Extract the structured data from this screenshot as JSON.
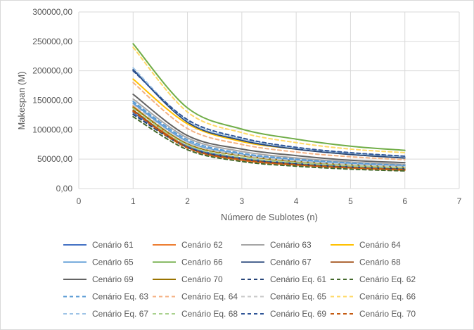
{
  "chart_data": {
    "type": "line",
    "title": "",
    "xlabel": "Número de Sublotes (n)",
    "ylabel": "Makespan (M)",
    "xlim": [
      0,
      7
    ],
    "ylim": [
      0,
      300000
    ],
    "x_ticks": [
      0,
      1,
      2,
      3,
      4,
      5,
      6,
      7
    ],
    "x_tick_labels": [
      "0",
      "1",
      "2",
      "3",
      "4",
      "5",
      "6",
      "7"
    ],
    "y_ticks": [
      0,
      50000,
      100000,
      150000,
      200000,
      250000,
      300000
    ],
    "y_tick_labels": [
      "0,00",
      "50000,00",
      "100000,00",
      "150000,00",
      "200000,00",
      "250000,00",
      "300000,00"
    ],
    "grid": true,
    "legend_position": "bottom",
    "x": [
      1,
      2,
      3,
      4,
      5,
      6
    ],
    "series": [
      {
        "name": "Cenário 61",
        "color": "#4472c4",
        "dash": "solid",
        "values": [
          129000,
          72000,
          52000,
          43000,
          37500,
          34500
        ]
      },
      {
        "name": "Cenário 62",
        "color": "#ed7d31",
        "dash": "solid",
        "values": [
          140000,
          70000,
          48000,
          40000,
          35000,
          31000
        ]
      },
      {
        "name": "Cenário 63",
        "color": "#a5a5a5",
        "dash": "solid",
        "values": [
          152000,
          86000,
          63000,
          52000,
          45000,
          41000
        ]
      },
      {
        "name": "Cenário 64",
        "color": "#ffc000",
        "dash": "solid",
        "values": [
          186000,
          110000,
          80000,
          67000,
          58000,
          52000
        ]
      },
      {
        "name": "Cenário 65",
        "color": "#5b9bd5",
        "dash": "solid",
        "values": [
          145000,
          80000,
          58000,
          48000,
          42000,
          38000
        ]
      },
      {
        "name": "Cenário 66",
        "color": "#70ad47",
        "dash": "solid",
        "values": [
          246000,
          137000,
          101000,
          84000,
          72000,
          65000
        ]
      },
      {
        "name": "Cenário 67",
        "color": "#264478",
        "dash": "solid",
        "values": [
          202000,
          113000,
          82000,
          67000,
          58000,
          52000
        ]
      },
      {
        "name": "Cenário 68",
        "color": "#9e480e",
        "dash": "solid",
        "values": [
          133000,
          70000,
          50000,
          41000,
          36000,
          33000
        ]
      },
      {
        "name": "Cenário 69",
        "color": "#636363",
        "dash": "solid",
        "values": [
          160000,
          90000,
          67000,
          56000,
          48000,
          44000
        ]
      },
      {
        "name": "Cenário 70",
        "color": "#997300",
        "dash": "solid",
        "values": [
          138000,
          76000,
          56000,
          46000,
          40000,
          36000
        ]
      },
      {
        "name": "Cenário Eq. 61",
        "color": "#264478",
        "dash": "dashed",
        "values": [
          126000,
          70000,
          50000,
          42000,
          36500,
          33500
        ]
      },
      {
        "name": "Cenário Eq. 62",
        "color": "#43682b",
        "dash": "dashed",
        "values": [
          122000,
          66000,
          46000,
          38000,
          33000,
          30000
        ]
      },
      {
        "name": "Cenário Eq. 63",
        "color": "#5b9bd5",
        "dash": "dashed",
        "values": [
          148000,
          83000,
          60000,
          50000,
          43500,
          39500
        ]
      },
      {
        "name": "Cenário Eq. 64",
        "color": "#f4b183",
        "dash": "dashed",
        "values": [
          180000,
          102000,
          75000,
          62000,
          54000,
          49000
        ]
      },
      {
        "name": "Cenário Eq. 65",
        "color": "#c9c9c9",
        "dash": "dashed",
        "values": [
          142000,
          78000,
          57000,
          47000,
          41000,
          37000
        ]
      },
      {
        "name": "Cenário Eq. 66",
        "color": "#ffd966",
        "dash": "dashed",
        "values": [
          240000,
          130000,
          95000,
          78000,
          67000,
          61000
        ]
      },
      {
        "name": "Cenário Eq. 67",
        "color": "#9dc3e6",
        "dash": "dashed",
        "values": [
          205000,
          115000,
          84000,
          69000,
          60000,
          54000
        ]
      },
      {
        "name": "Cenário Eq. 68",
        "color": "#a9d18e",
        "dash": "dashed",
        "values": [
          136000,
          74000,
          53000,
          44000,
          38500,
          35000
        ]
      },
      {
        "name": "Cenário Eq. 69",
        "color": "#2f5597",
        "dash": "dashed",
        "values": [
          200000,
          117000,
          86000,
          70000,
          61000,
          55000
        ]
      },
      {
        "name": "Cenário Eq. 70",
        "color": "#c55a11",
        "dash": "dashed",
        "values": [
          131000,
          69000,
          49000,
          40500,
          35500,
          32000
        ]
      }
    ]
  }
}
